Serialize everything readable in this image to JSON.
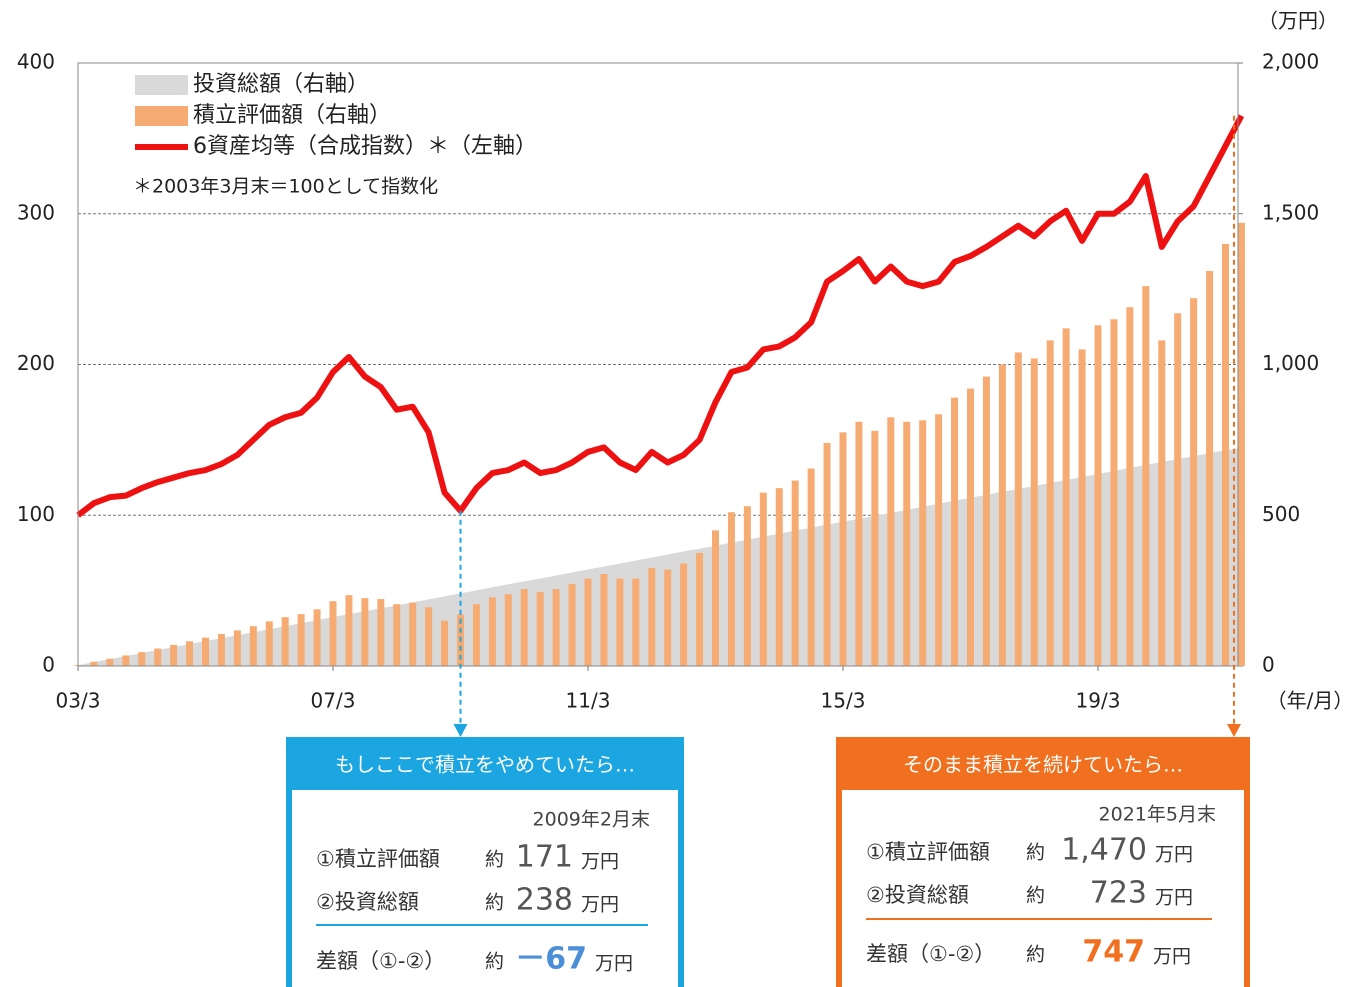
{
  "chart_data": {
    "type": "bar-line",
    "categories": [
      "03/3",
      null,
      null,
      null,
      null,
      null,
      null,
      null,
      null,
      null,
      null,
      null,
      null,
      null,
      null,
      null,
      "07/3",
      null,
      null,
      null,
      null,
      null,
      null,
      null,
      null,
      null,
      null,
      null,
      null,
      null,
      null,
      null,
      "11/3",
      null,
      null,
      null,
      null,
      null,
      null,
      null,
      null,
      null,
      null,
      null,
      null,
      null,
      null,
      null,
      "15/3",
      null,
      null,
      null,
      null,
      null,
      null,
      null,
      null,
      null,
      null,
      null,
      null,
      null,
      null,
      null,
      "19/3",
      null,
      null,
      null,
      null,
      null,
      null,
      null,
      null,
      null
    ],
    "series": [
      {
        "name": "投資総額（右軸）",
        "color": "#d9d9d9",
        "axis": "y2",
        "kind": "area",
        "values": [
          3,
          13,
          23,
          33,
          43,
          53,
          63,
          73,
          83,
          92,
          102,
          112,
          122,
          132,
          142,
          152,
          162,
          172,
          182,
          191,
          201,
          211,
          221,
          231,
          241,
          251,
          261,
          271,
          281,
          290,
          300,
          310,
          320,
          330,
          340,
          350,
          360,
          370,
          380,
          389,
          399,
          409,
          419,
          429,
          439,
          449,
          459,
          469,
          479,
          488,
          498,
          508,
          518,
          528,
          538,
          548,
          558,
          568,
          578,
          587,
          597,
          607,
          617,
          627,
          637,
          647,
          657,
          667,
          677,
          686,
          696,
          706,
          716,
          723
        ]
      },
      {
        "name": "積立評価額（右軸）",
        "color": "#f5ab72",
        "axis": "y2",
        "kind": "bar",
        "values": [
          3,
          14,
          24,
          35,
          46,
          58,
          70,
          82,
          94,
          106,
          118,
          132,
          148,
          162,
          172,
          188,
          215,
          235,
          225,
          222,
          205,
          210,
          195,
          150,
          171,
          205,
          228,
          238,
          255,
          245,
          255,
          272,
          290,
          305,
          290,
          290,
          325,
          320,
          340,
          375,
          450,
          510,
          530,
          575,
          590,
          615,
          655,
          740,
          775,
          810,
          780,
          825,
          810,
          815,
          835,
          890,
          920,
          960,
          1000,
          1040,
          1020,
          1080,
          1120,
          1050,
          1130,
          1150,
          1190,
          1260,
          1080,
          1170,
          1220,
          1310,
          1400,
          1470
        ]
      },
      {
        "name": "6資産均等（合成指数）＊（左軸）",
        "color": "#ee1111",
        "axis": "y",
        "kind": "line",
        "values": [
          100,
          108,
          112,
          113,
          118,
          122,
          125,
          128,
          130,
          134,
          140,
          150,
          160,
          165,
          168,
          178,
          195,
          205,
          192,
          185,
          170,
          172,
          155,
          115,
          103,
          118,
          128,
          130,
          135,
          128,
          130,
          135,
          142,
          145,
          135,
          130,
          142,
          135,
          140,
          150,
          175,
          195,
          198,
          210,
          212,
          218,
          228,
          255,
          262,
          270,
          255,
          265,
          255,
          252,
          255,
          268,
          272,
          278,
          285,
          292,
          285,
          295,
          302,
          282,
          300,
          300,
          308,
          325,
          278,
          295,
          305,
          325,
          345,
          365
        ]
      }
    ],
    "ylim": [
      0,
      400
    ],
    "yticks": [
      0,
      100,
      200,
      300,
      400
    ],
    "y2lim": [
      0,
      2000
    ],
    "y2ticks": [
      0,
      500,
      {
        "value": 1000,
        "label": "1,000"
      },
      {
        "value": 1500,
        "label": "1,500"
      },
      {
        "value": 2000,
        "label": "2,000"
      }
    ],
    "y2label": "（万円）",
    "xlabel": "（年/月）",
    "note": "＊2003年3月末＝100として指数化",
    "grid": true
  },
  "callouts": [
    {
      "title": "もしここで積立をやめていたら…",
      "date": "2009年2月末",
      "color": "#1ba6e2",
      "value_color": "#4a8fd8",
      "rows": [
        {
          "label": "①積立評価額",
          "prefix": "約",
          "value": "171",
          "unit": "万円"
        },
        {
          "label": "②投資総額",
          "prefix": "約",
          "value": "238",
          "unit": "万円"
        }
      ],
      "diff": {
        "label": "差額（①-②）",
        "prefix": "約",
        "value": "－67",
        "unit": "万円"
      }
    },
    {
      "title": "そのまま積立を続けていたら…",
      "date": "2021年5月末",
      "color": "#f07020",
      "value_color": "#f07020",
      "rows": [
        {
          "label": "①積立評価額",
          "prefix": "約",
          "value": "1,470",
          "unit": "万円"
        },
        {
          "label": "②投資総額",
          "prefix": "約",
          "value": "723",
          "unit": "万円"
        }
      ],
      "diff": {
        "label": "差額（①-②）",
        "prefix": "約",
        "value": "747",
        "unit": "万円"
      }
    }
  ]
}
